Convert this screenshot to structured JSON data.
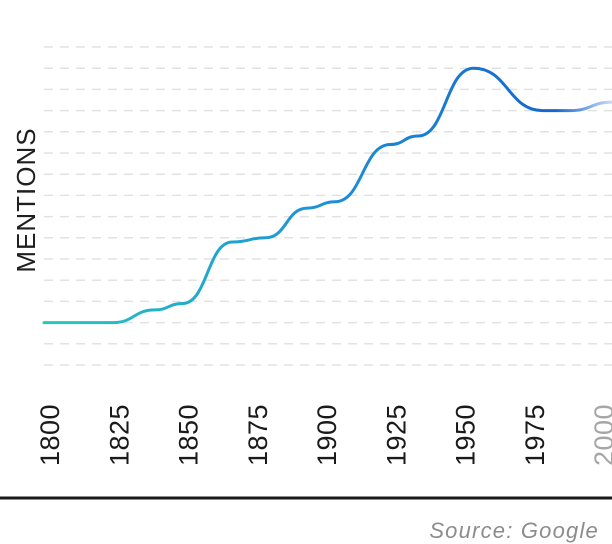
{
  "chart_data": {
    "type": "line",
    "title": "",
    "xlabel": "",
    "ylabel": "MENTIONS",
    "x": [
      1800,
      1825,
      1840,
      1850,
      1868,
      1880,
      1895,
      1905,
      1925,
      1935,
      1955,
      1980,
      1990,
      2005
    ],
    "y": [
      1.0,
      1.0,
      1.6,
      1.9,
      4.8,
      5.0,
      6.4,
      6.7,
      9.4,
      9.8,
      13.0,
      11.0,
      11.0,
      11.4
    ],
    "xticks": [
      "1800",
      "1825",
      "1850",
      "1875",
      "1900",
      "1925",
      "1950",
      "1975",
      "2000"
    ],
    "xlim": [
      1800,
      2005
    ],
    "ylim": [
      -1,
      14
    ],
    "grid": true,
    "legend": "none",
    "colors": {
      "line_start": "#27c9bc",
      "line_mid": "#1e95d6",
      "line_end": "#1466d0",
      "line_fade": "#c9dcf7",
      "grid": "#e2e2e2",
      "axis": "#1a1a1a",
      "tick": "#1a1a1a",
      "tick_faded": "#a6a6a6"
    }
  },
  "source": "Source: Google"
}
